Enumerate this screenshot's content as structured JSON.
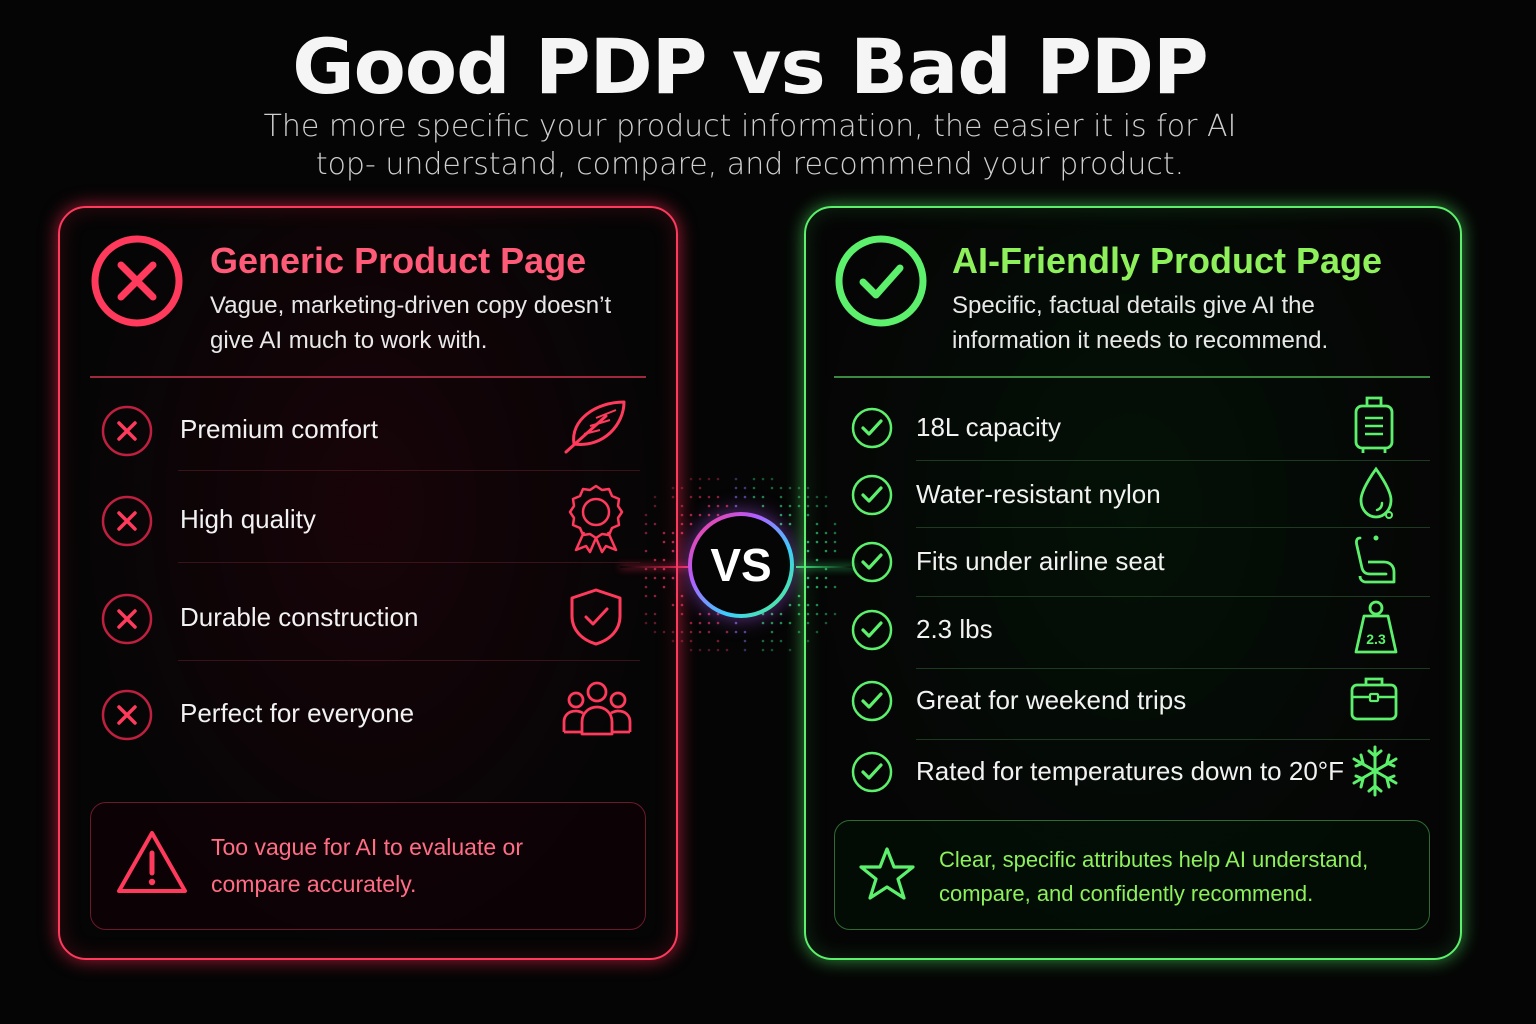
{
  "header": {
    "title": "Good PDP vs Bad PDP",
    "subtitle": "The more specific your product information, the easier it is for AI top- understand, compare, and recommend your product."
  },
  "bad_panel": {
    "title": "Generic Product Page",
    "description": "Vague, marketing-driven copy doesn’t give AI much to work with.",
    "items": [
      {
        "label": "Premium comfort",
        "icon": "feather-icon"
      },
      {
        "label": "High quality",
        "icon": "award-ribbon-icon"
      },
      {
        "label": "Durable construction",
        "icon": "shield-check-icon"
      },
      {
        "label": "Perfect for everyone",
        "icon": "people-group-icon"
      }
    ],
    "note": "Too vague for AI to evaluate or compare accurately.",
    "note_icon": "warning-triangle-icon",
    "accent": "#ff3a5c"
  },
  "vs_label": "VS",
  "good_panel": {
    "title": "AI-Friendly Product Page",
    "description": "Specific, factual details give AI the information it needs to recommend.",
    "items": [
      {
        "label": "18L capacity",
        "icon": "luggage-icon"
      },
      {
        "label": "Water-resistant nylon",
        "icon": "water-drop-icon"
      },
      {
        "label": "Fits under airline seat",
        "icon": "airline-seat-icon"
      },
      {
        "label": "2.3 lbs",
        "icon": "weight-icon",
        "icon_text": "2.3"
      },
      {
        "label": "Great for weekend trips",
        "icon": "briefcase-icon"
      },
      {
        "label": "Rated for temperatures down to 20°F",
        "icon": "snowflake-icon"
      }
    ],
    "note": "Clear, specific attributes help AI understand, compare, and confidently recommend.",
    "note_icon": "star-icon",
    "accent": "#5cf06c"
  }
}
